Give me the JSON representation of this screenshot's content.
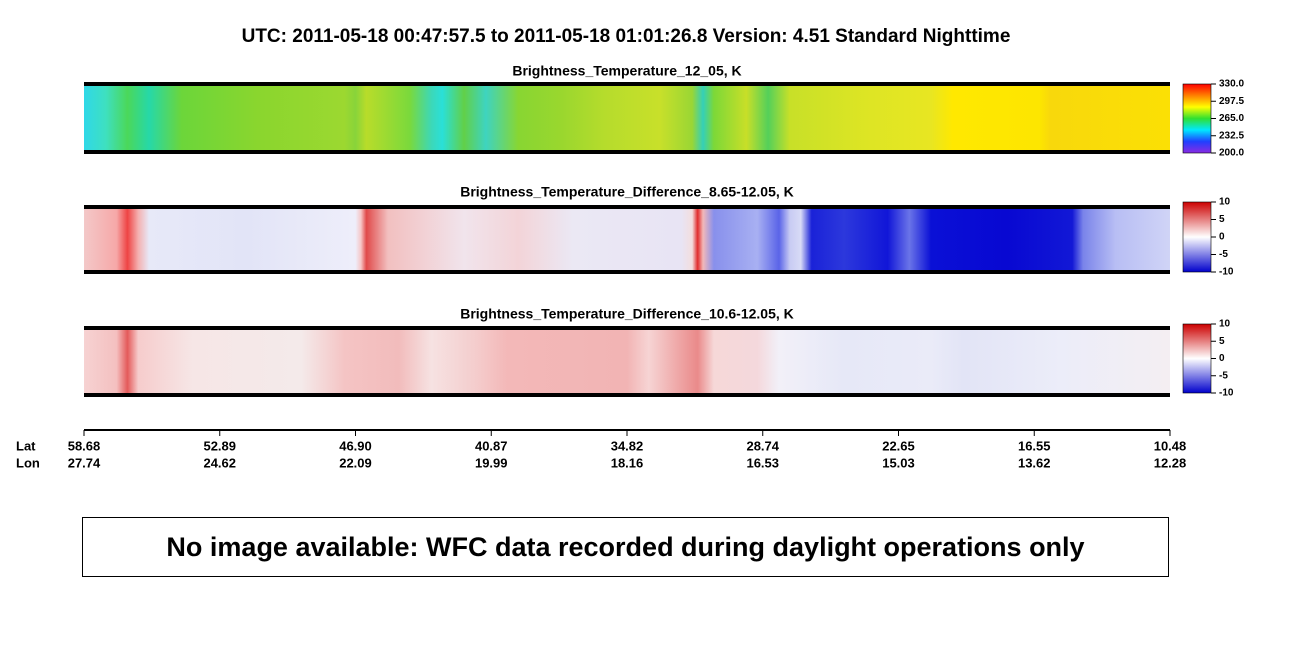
{
  "title": "UTC:  2011-05-18   00:47:57.5  to  2011-05-18   01:01:26.8    Version: 4.51  Standard Nighttime",
  "chart_data": [
    {
      "type": "heatmap",
      "title": "Brightness_Temperature_12_05, K",
      "colormap": [
        "#8a2be2",
        "#2040ff",
        "#00e8ff",
        "#30e030",
        "#ffff00",
        "#ff8000",
        "#ff0000"
      ],
      "clim": [
        200,
        330
      ],
      "cticks": [
        {
          "value": 330,
          "label": "330.0"
        },
        297.5,
        {
          "value": 265,
          "label": "265.0"
        },
        232.5,
        {
          "value": 200,
          "label": "200.0"
        }
      ]
    },
    {
      "type": "heatmap",
      "title": "Brightness_Temperature_Difference_8.65-12.05, K",
      "colormap": [
        "#0000cc",
        "#ffffff",
        "#cc0000"
      ],
      "clim": [
        -10,
        10
      ],
      "cticks": [
        10,
        5,
        0,
        -5,
        -10
      ]
    },
    {
      "type": "heatmap",
      "title": "Brightness_Temperature_Difference_10.6-12.05, K",
      "colormap": [
        "#0000cc",
        "#ffffff",
        "#cc0000"
      ],
      "clim": [
        -10,
        10
      ],
      "cticks": [
        10,
        5,
        0,
        -5,
        -10
      ]
    }
  ],
  "x_axis": {
    "row_labels": [
      "Lat",
      "Lon"
    ],
    "lat": [
      58.68,
      52.89,
      46.9,
      40.87,
      34.82,
      28.74,
      22.65,
      16.55,
      10.48
    ],
    "lon": [
      27.74,
      24.62,
      22.09,
      19.99,
      18.16,
      16.53,
      15.03,
      13.62,
      12.28
    ]
  },
  "notice": "No image available: WFC data recorded during daylight operations only"
}
